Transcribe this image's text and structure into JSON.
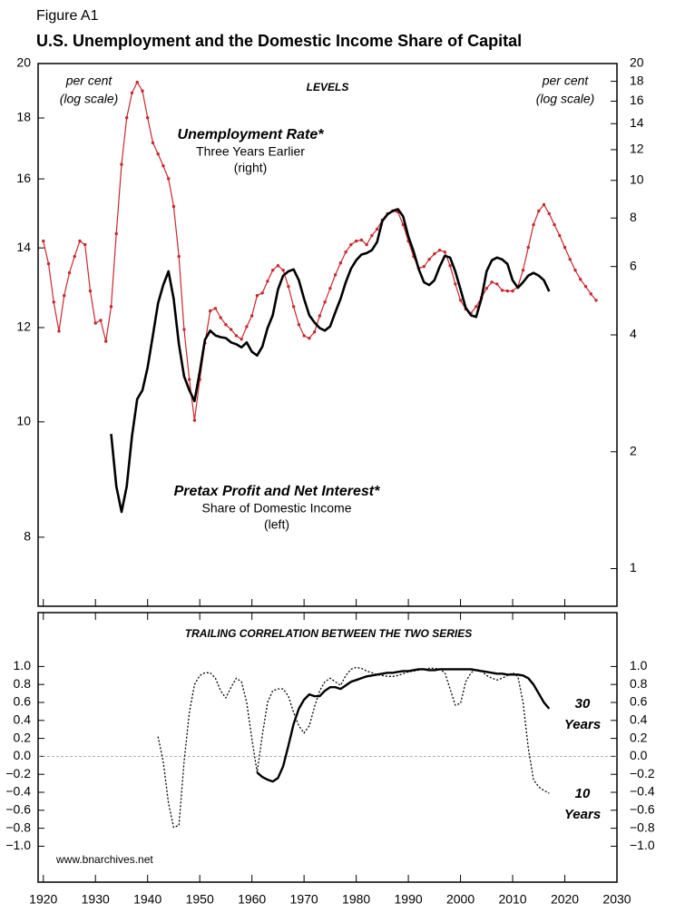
{
  "figure_label": "Figure A1",
  "title": "U.S. Unemployment and the Domestic Income Share of Capital",
  "source": "www.bnarchives.net",
  "chart_data": [
    {
      "type": "line",
      "log_scale": true,
      "panel_title": "LEVELS",
      "axis_notes": {
        "left": [
          "per cent",
          "(log scale)"
        ],
        "right": [
          "per cent",
          "(log scale)"
        ]
      },
      "ylim": [
        7,
        20
      ],
      "yticks": [
        8,
        10,
        12,
        14,
        16,
        18,
        20
      ],
      "y2lim": [
        0.8,
        20
      ],
      "y2ticks": [
        1,
        2,
        4,
        6,
        8,
        10,
        12,
        14,
        16,
        18,
        20
      ],
      "series": [
        {
          "name": "Unemployment Rate*",
          "notes": [
            "Three Years Earlier",
            "(right)"
          ],
          "axis": "y2",
          "color": "#c8282e",
          "markers": true,
          "x": [
            1920,
            1921,
            1922,
            1923,
            1924,
            1925,
            1926,
            1927,
            1928,
            1929,
            1930,
            1931,
            1932,
            1933,
            1934,
            1935,
            1936,
            1937,
            1938,
            1939,
            1940,
            1941,
            1942,
            1943,
            1944,
            1945,
            1946,
            1947,
            1948,
            1949,
            1950,
            1951,
            1952,
            1953,
            1954,
            1955,
            1956,
            1957,
            1958,
            1959,
            1960,
            1961,
            1962,
            1963,
            1964,
            1965,
            1966,
            1967,
            1968,
            1969,
            1970,
            1971,
            1972,
            1973,
            1974,
            1975,
            1976,
            1977,
            1978,
            1979,
            1980,
            1981,
            1982,
            1983,
            1984,
            1985,
            1986,
            1987,
            1988,
            1989,
            1990,
            1991,
            1992,
            1993,
            1994,
            1995,
            1996,
            1997,
            1998,
            1999,
            2000,
            2001,
            2002,
            2003,
            2004,
            2005,
            2006,
            2007,
            2008,
            2009,
            2010,
            2011,
            2012,
            2013,
            2014,
            2015,
            2016,
            2017,
            2018,
            2019,
            2020,
            2021,
            2022,
            2023,
            2024,
            2025,
            2026
          ],
          "values": [
            6.98,
            6.1,
            4.86,
            4.09,
            5.05,
            5.78,
            6.37,
            6.98,
            6.83,
            5.19,
            4.29,
            4.36,
            3.85,
            4.73,
            7.29,
            11.0,
            14.5,
            16.8,
            17.9,
            17.0,
            14.5,
            12.5,
            11.7,
            10.9,
            10.1,
            8.57,
            6.37,
            4.13,
            3.07,
            2.41,
            3.07,
            3.81,
            4.61,
            4.68,
            4.43,
            4.25,
            4.13,
            3.98,
            3.9,
            4.2,
            4.48,
            5.05,
            5.13,
            5.5,
            5.87,
            6.03,
            5.87,
            5.33,
            4.73,
            4.25,
            3.98,
            3.92,
            4.07,
            4.48,
            4.86,
            5.27,
            5.71,
            6.13,
            6.54,
            6.83,
            6.98,
            7.02,
            6.83,
            7.21,
            7.49,
            7.9,
            8.21,
            8.34,
            8.29,
            7.69,
            6.98,
            6.37,
            5.94,
            6.0,
            6.26,
            6.47,
            6.61,
            6.54,
            6.03,
            5.41,
            4.91,
            4.66,
            4.55,
            4.73,
            4.99,
            5.27,
            5.47,
            5.41,
            5.21,
            5.19,
            5.19,
            5.33,
            5.87,
            6.72,
            7.69,
            8.34,
            8.66,
            8.21,
            7.69,
            7.21,
            6.72,
            6.26,
            5.87,
            5.56,
            5.33,
            5.1,
            4.91
          ]
        },
        {
          "name": "Pretax Profit and Net Interest*",
          "notes": [
            "Share of Domestic Income",
            "(left)"
          ],
          "color": "#000000",
          "x": [
            1933,
            1934,
            1935,
            1936,
            1937,
            1938,
            1939,
            1940,
            1941,
            1942,
            1943,
            1944,
            1945,
            1946,
            1947,
            1948,
            1949,
            1950,
            1951,
            1952,
            1953,
            1954,
            1955,
            1956,
            1957,
            1958,
            1959,
            1960,
            1961,
            1962,
            1963,
            1964,
            1965,
            1966,
            1967,
            1968,
            1969,
            1970,
            1971,
            1972,
            1973,
            1974,
            1975,
            1976,
            1977,
            1978,
            1979,
            1980,
            1981,
            1982,
            1983,
            1984,
            1985,
            1986,
            1987,
            1988,
            1989,
            1990,
            1991,
            1992,
            1993,
            1994,
            1995,
            1996,
            1997,
            1998,
            1999,
            2000,
            2001,
            2002,
            2003,
            2004,
            2005,
            2006,
            2007,
            2008,
            2009,
            2010,
            2011,
            2012,
            2013,
            2014,
            2015,
            2016,
            2017
          ],
          "values": [
            9.77,
            8.83,
            8.4,
            8.83,
            9.73,
            10.45,
            10.63,
            11.11,
            11.82,
            12.58,
            13.03,
            13.38,
            12.69,
            11.62,
            10.92,
            10.63,
            10.41,
            11.02,
            11.72,
            11.93,
            11.82,
            11.78,
            11.76,
            11.66,
            11.62,
            11.55,
            11.66,
            11.45,
            11.37,
            11.57,
            11.99,
            12.29,
            12.92,
            13.27,
            13.38,
            13.43,
            13.15,
            12.69,
            12.29,
            12.12,
            11.99,
            11.93,
            12.03,
            12.36,
            12.69,
            13.1,
            13.45,
            13.67,
            13.82,
            13.86,
            13.94,
            14.16,
            14.75,
            14.94,
            15.04,
            15.09,
            14.88,
            14.31,
            13.91,
            13.43,
            13.1,
            13.03,
            13.15,
            13.5,
            13.79,
            13.74,
            13.38,
            12.92,
            12.47,
            12.29,
            12.25,
            12.69,
            13.38,
            13.67,
            13.74,
            13.69,
            13.57,
            13.15,
            12.96,
            13.1,
            13.27,
            13.34,
            13.27,
            13.15,
            12.87
          ]
        }
      ]
    },
    {
      "type": "line",
      "title": "TRAILING CORRELATION BETWEEN THE TWO SERIES",
      "xlim": [
        1919,
        2030
      ],
      "xticks": [
        1920,
        1930,
        1940,
        1950,
        1960,
        1970,
        1980,
        1990,
        2000,
        2010,
        2020,
        2030
      ],
      "ylim": [
        -1.4,
        1.6
      ],
      "yticks": [
        {
          "value": 1,
          "label": "1.0"
        },
        0.8,
        0.6,
        0.4,
        0.2,
        {
          "value": 0,
          "label": "0.0"
        },
        {
          "value": -0.2,
          "label": "−0.2"
        },
        {
          "value": -0.4,
          "label": "−0.4"
        },
        {
          "value": -0.6,
          "label": "−0.6"
        },
        {
          "value": -0.8,
          "label": "−0.8"
        },
        {
          "value": -1,
          "label": "−1.0"
        }
      ],
      "reference_line": 0,
      "series": [
        {
          "label": [
            "30",
            "Years"
          ],
          "color": "#000000",
          "dashed": false,
          "x": [
            1961,
            1962,
            1963,
            1964,
            1965,
            1966,
            1967,
            1968,
            1969,
            1970,
            1971,
            1972,
            1973,
            1974,
            1975,
            1976,
            1977,
            1978,
            1979,
            1980,
            1981,
            1982,
            1983,
            1984,
            1985,
            1986,
            1987,
            1988,
            1989,
            1990,
            1991,
            1992,
            1993,
            1994,
            1995,
            1996,
            1997,
            1998,
            1999,
            2000,
            2001,
            2002,
            2003,
            2004,
            2005,
            2006,
            2007,
            2008,
            2009,
            2010,
            2011,
            2012,
            2013,
            2014,
            2015,
            2016,
            2017
          ],
          "values": [
            -0.18,
            -0.23,
            -0.26,
            -0.28,
            -0.24,
            -0.11,
            0.12,
            0.36,
            0.53,
            0.63,
            0.69,
            0.67,
            0.67,
            0.73,
            0.77,
            0.77,
            0.75,
            0.79,
            0.83,
            0.85,
            0.87,
            0.89,
            0.9,
            0.91,
            0.92,
            0.93,
            0.93,
            0.94,
            0.95,
            0.95,
            0.96,
            0.97,
            0.97,
            0.96,
            0.96,
            0.97,
            0.97,
            0.97,
            0.97,
            0.97,
            0.97,
            0.97,
            0.96,
            0.95,
            0.94,
            0.93,
            0.92,
            0.92,
            0.91,
            0.91,
            0.91,
            0.9,
            0.87,
            0.8,
            0.7,
            0.6,
            0.53
          ]
        },
        {
          "label": [
            "10",
            "Years"
          ],
          "color": "#000000",
          "dashed": true,
          "x": [
            1942,
            1943,
            1944,
            1945,
            1946,
            1947,
            1948,
            1949,
            1950,
            1951,
            1952,
            1953,
            1954,
            1955,
            1956,
            1957,
            1958,
            1959,
            1960,
            1961,
            1962,
            1963,
            1964,
            1965,
            1966,
            1967,
            1968,
            1969,
            1970,
            1971,
            1972,
            1973,
            1974,
            1975,
            1976,
            1977,
            1978,
            1979,
            1980,
            1981,
            1982,
            1983,
            1984,
            1985,
            1986,
            1987,
            1988,
            1989,
            1990,
            1991,
            1992,
            1993,
            1994,
            1995,
            1996,
            1997,
            1998,
            1999,
            2000,
            2001,
            2002,
            2003,
            2004,
            2005,
            2006,
            2007,
            2008,
            2009,
            2010,
            2011,
            2012,
            2013,
            2014,
            2015,
            2016,
            2017
          ],
          "values": [
            0.22,
            -0.06,
            -0.52,
            -0.79,
            -0.77,
            -0.06,
            0.49,
            0.8,
            0.9,
            0.93,
            0.93,
            0.87,
            0.73,
            0.65,
            0.77,
            0.87,
            0.83,
            0.6,
            0.19,
            -0.18,
            0.24,
            0.6,
            0.73,
            0.75,
            0.75,
            0.67,
            0.49,
            0.34,
            0.26,
            0.34,
            0.55,
            0.73,
            0.83,
            0.87,
            0.83,
            0.79,
            0.9,
            0.97,
            0.99,
            0.98,
            0.95,
            0.93,
            0.91,
            0.9,
            0.89,
            0.89,
            0.9,
            0.92,
            0.94,
            0.95,
            0.96,
            0.97,
            0.98,
            0.98,
            0.97,
            0.93,
            0.75,
            0.57,
            0.59,
            0.83,
            0.93,
            0.97,
            0.95,
            0.9,
            0.87,
            0.85,
            0.87,
            0.9,
            0.93,
            0.89,
            0.6,
            0.09,
            -0.26,
            -0.34,
            -0.38,
            -0.41
          ]
        }
      ]
    }
  ]
}
